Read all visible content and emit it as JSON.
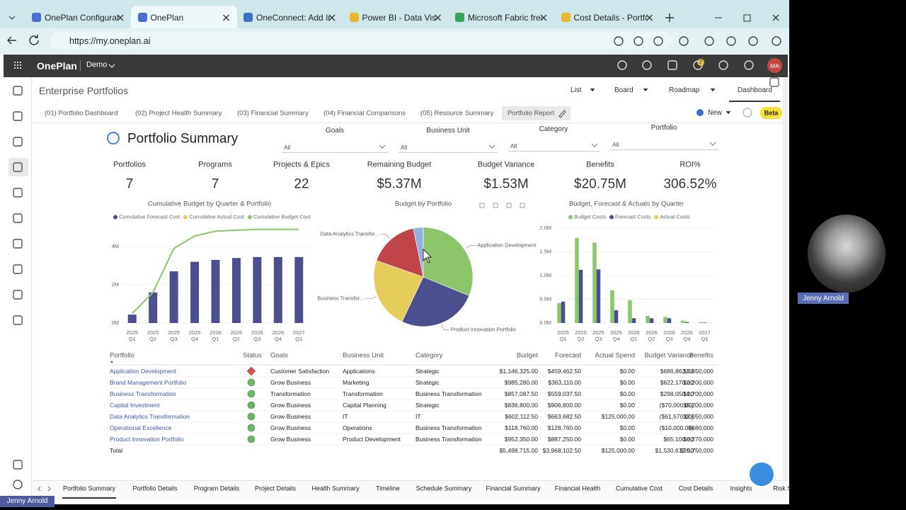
{
  "browser": {
    "tabs": [
      "OnePlan Configurati",
      "OnePlan",
      "OneConnect: Add Int",
      "Power BI - Data Visu",
      "Microsoft Fabric free",
      "Cost Details - Portfol"
    ],
    "active_tab": 1,
    "url": "https://my.oneplan.ai"
  },
  "app": {
    "brand": "OnePlan",
    "workspace": "Demo",
    "notifications": "2",
    "avatar": "MA"
  },
  "page": {
    "title": "Enterprise Portfolios",
    "views": [
      "List",
      "Board",
      "Roadmap",
      "Dashboard"
    ],
    "report_tabs": [
      "(01) Portfolio Dashboard",
      "(02) Project Health Summary",
      "(03) Financial Summary",
      "(04) Financial Comparisons",
      "(05) Resource Summary",
      "Portfolio Report"
    ],
    "new": "New",
    "beta": "Beta"
  },
  "report": {
    "title": "Portfolio Summary",
    "filters": [
      {
        "label": "Goals",
        "value": "All"
      },
      {
        "label": "Business Unit",
        "value": "All"
      },
      {
        "label": "Category",
        "value": "All"
      },
      {
        "label": "Portfolio",
        "value": "All"
      }
    ],
    "kpis": [
      {
        "label": "Portfolios",
        "value": "7"
      },
      {
        "label": "Programs",
        "value": "7"
      },
      {
        "label": "Projects & Epics",
        "value": "22"
      },
      {
        "label": "Remaining Budget",
        "value": "$5.37M"
      },
      {
        "label": "Budget Variance",
        "value": "$1.53M"
      },
      {
        "label": "Benefits",
        "value": "$20.75M"
      },
      {
        "label": "ROI%",
        "value": "306.52%"
      }
    ]
  },
  "charts": [
    {
      "type": "combo",
      "title": "Cumulative Budget by Quarter & Portfolio",
      "categories": [
        "2025 Q1",
        "2025 Q2",
        "2025 Q3",
        "2025 Q4",
        "2026 Q1",
        "2026 Q2",
        "2026 Q3",
        "2026 Q4",
        "2027 Q1"
      ],
      "series": [
        {
          "name": "Cumulative Forecast Cost",
          "color": "#4b4f8e",
          "type": "bar",
          "values": [
            0.44,
            1.6,
            2.7,
            3.2,
            3.3,
            3.4,
            3.45,
            3.45,
            3.45
          ]
        },
        {
          "name": "Cumulative Actual Cost",
          "color": "#e6cc5a",
          "type": "bar",
          "values": [
            0,
            0,
            0,
            0,
            0,
            0,
            0,
            0,
            0
          ]
        },
        {
          "name": "Cumulative Budget Cost",
          "color": "#8cc56a",
          "type": "line",
          "values": [
            0.5,
            1.6,
            3.9,
            4.55,
            4.8,
            4.85,
            4.9,
            4.9,
            4.9
          ]
        }
      ],
      "ylim": [
        0,
        5
      ],
      "yticks": [
        {
          "value": 0,
          "label": "0M"
        },
        {
          "value": 2,
          "label": "2M"
        },
        {
          "value": 4,
          "label": "4M"
        }
      ]
    },
    {
      "type": "pie",
      "title": "Budget by Portfolio",
      "categories": [
        "Application Development",
        "Product Innovation Portfolio",
        "Business Transfor...",
        "Data Analytics Transfor...",
        null
      ],
      "values": [
        1146325,
        952350,
        857087.5,
        602112.5,
        118760
      ],
      "colors": [
        "#8cc56a",
        "#4b4f8e",
        "#e6cc5a",
        "#c0454a",
        "#8fb3de"
      ]
    },
    {
      "type": "bar",
      "title": "Budget, Forecast & Actuals by Quarter",
      "categories": [
        "2025 Q1",
        "2025 Q2",
        "2025 Q3",
        "2025 Q4",
        "2026 Q1",
        "2026 Q2",
        "2026 Q3",
        "2026 Q4",
        "2027 Q1"
      ],
      "series": [
        {
          "name": "Budget Costs",
          "color": "#8cc56a",
          "values": [
            0.42,
            1.79,
            1.69,
            0.69,
            0.48,
            0.15,
            0.13,
            0.05,
            0.02
          ]
        },
        {
          "name": "Forecast Costs",
          "color": "#4b4f8e",
          "values": [
            0.45,
            1.12,
            1.13,
            0.27,
            0.1,
            0.1,
            0.1,
            0.02,
            0.01
          ]
        },
        {
          "name": "Actual Costs",
          "color": "#e6cc5a",
          "values": [
            0,
            0,
            0,
            0,
            0,
            0,
            0,
            0,
            0
          ]
        }
      ],
      "ylim": [
        0,
        2.1
      ],
      "yticks": [
        {
          "value": 0,
          "label": "0.0M"
        },
        {
          "value": 0.5,
          "label": "0.5M"
        },
        {
          "value": 1,
          "label": "1.0M"
        },
        {
          "value": 1.5,
          "label": "1.5M"
        },
        {
          "value": 2,
          "label": "2.0M"
        }
      ]
    }
  ],
  "table": {
    "columns": [
      "Portfolio",
      "Status",
      "Goals",
      "Business Unit",
      "Category",
      "Budget",
      "Forecast",
      "Actual Spend",
      "Budget Variance",
      "Benefits"
    ],
    "rows": [
      [
        "Application Development",
        "Customer Satisfaction",
        "Applications",
        "Strategic",
        "$1,146,325.00",
        "$459,462.50",
        "$0.00",
        "$686,862.50",
        "$2,650,000"
      ],
      [
        "Brand Management Portfolio",
        "Grow Business",
        "Marketing",
        "Strategic",
        "$985,280.00",
        "$363,110.00",
        "$0.00",
        "$622,170.00",
        "$2,200,000"
      ],
      [
        "Business Transformation",
        "Transformation",
        "Transformation",
        "Business Transformation",
        "$857,087.50",
        "$559,037.50",
        "$0.00",
        "$298,050.00",
        "$1,700,000"
      ],
      [
        "Capital Investment",
        "Grow Business",
        "Capital Planning",
        "Strategic",
        "$836,800.00",
        "$906,800.00",
        "$0.00",
        "($70,000.00)",
        "$5,200,000"
      ],
      [
        "Data Analytics Transformation",
        "Grow Business",
        "IT",
        "IT",
        "$602,112.50",
        "$663,682.50",
        "$125,000.00",
        "($61,570.00)",
        "$2,050,000"
      ],
      [
        "Operational Excellence",
        "Grow Business",
        "Operations",
        "Business Transformation",
        "$118,760.00",
        "$128,760.00",
        "$0.00",
        "($10,000.00)",
        "$680,000"
      ],
      [
        "Product Innovation Portfolio",
        "Grow Business",
        "Product Development",
        "Business Transformation",
        "$952,350.00",
        "$887,250.00",
        "$0.00",
        "$65,100.00",
        "$6,270,000"
      ]
    ],
    "status": [
      {
        "shape": "diamond",
        "color": "#d9534f"
      },
      {
        "shape": "circle",
        "color": "#6fb36a"
      },
      {
        "shape": "circle",
        "color": "#6fb36a"
      },
      {
        "shape": "circle",
        "color": "#6fb36a"
      },
      {
        "shape": "circle",
        "color": "#6fb36a"
      },
      {
        "shape": "circle",
        "color": "#6fb36a"
      },
      {
        "shape": "circle",
        "color": "#6fb36a"
      }
    ],
    "total": {
      "label": "Total",
      "values": [
        "$5,498,715.00",
        "$3,968,102.50",
        "$125,000.00",
        "$1,530,612.50",
        "$20,750,000"
      ]
    }
  },
  "bottom_tabs": [
    "Portfolio Summary",
    "Portfolio Details",
    "Program Details",
    "Project Details",
    "Health Summary",
    "Timeline",
    "Schedule Summary",
    "Financial Summary",
    "Financial Health",
    "Cumulative Cost",
    "Cost Details",
    "Insights",
    "Risk S"
  ],
  "active_bottom_tab": 0,
  "presenter": {
    "name": "Jenny Arnold"
  }
}
